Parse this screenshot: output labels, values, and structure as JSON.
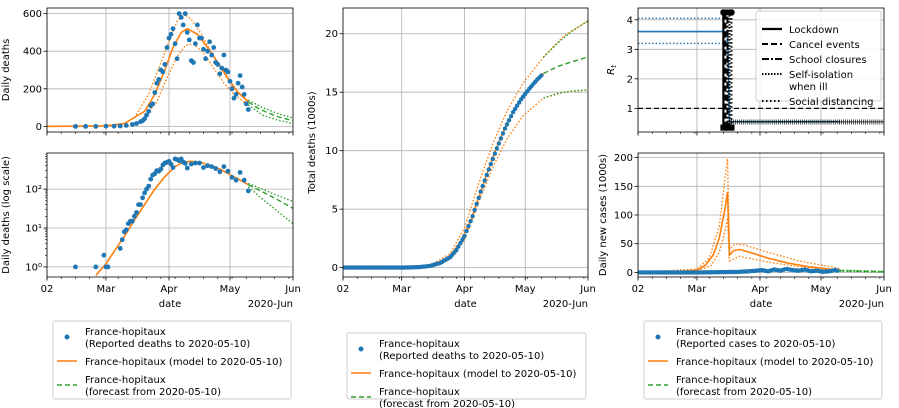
{
  "colors": {
    "reported": "#1f77b4",
    "model": "#ff7f0e",
    "forecast": "#2ca02c",
    "grid": "#b0b0b0"
  },
  "chart_data": [
    {
      "type": "scatter",
      "panel": "daily-deaths",
      "ylabel": "Daily deaths",
      "ylim": [
        -30,
        630
      ],
      "yticks": [
        0,
        200,
        400,
        600
      ],
      "xticks": [
        "02",
        "Mar",
        "Apr",
        "May",
        "Jun"
      ],
      "grid": true,
      "reported": {
        "x": [
          "2020-02-15",
          "2020-02-20",
          "2020-02-25",
          "2020-03-01",
          "2020-03-05",
          "2020-03-08",
          "2020-03-11",
          "2020-03-14",
          "2020-03-16",
          "2020-03-18",
          "2020-03-19",
          "2020-03-20",
          "2020-03-21",
          "2020-03-22",
          "2020-03-23",
          "2020-03-24",
          "2020-03-25",
          "2020-03-26",
          "2020-03-27",
          "2020-03-28",
          "2020-03-29",
          "2020-03-30",
          "2020-03-31",
          "2020-04-01",
          "2020-04-02",
          "2020-04-03",
          "2020-04-04",
          "2020-04-05",
          "2020-04-06",
          "2020-04-07",
          "2020-04-08",
          "2020-04-09",
          "2020-04-10",
          "2020-04-11",
          "2020-04-12",
          "2020-04-13",
          "2020-04-14",
          "2020-04-15",
          "2020-04-16",
          "2020-04-17",
          "2020-04-18",
          "2020-04-19",
          "2020-04-20",
          "2020-04-21",
          "2020-04-22",
          "2020-04-23",
          "2020-04-24",
          "2020-04-25",
          "2020-04-26",
          "2020-04-27",
          "2020-04-28",
          "2020-04-29",
          "2020-04-30",
          "2020-05-01",
          "2020-05-02",
          "2020-05-03",
          "2020-05-04",
          "2020-05-05",
          "2020-05-06",
          "2020-05-07",
          "2020-05-08",
          "2020-05-09",
          "2020-05-10"
        ],
        "y": [
          0,
          0,
          0,
          1,
          1,
          2,
          5,
          10,
          15,
          25,
          30,
          40,
          60,
          80,
          110,
          120,
          180,
          230,
          250,
          300,
          290,
          330,
          420,
          470,
          490,
          520,
          440,
          360,
          600,
          580,
          540,
          600,
          500,
          460,
          350,
          340,
          440,
          540,
          470,
          470,
          410,
          360,
          400,
          450,
          380,
          420,
          340,
          330,
          280,
          310,
          380,
          300,
          290,
          240,
          200,
          150,
          170,
          230,
          270,
          210,
          170,
          120,
          90
        ]
      },
      "model": {
        "x": [
          "2020-02-01",
          "2020-03-01",
          "2020-03-10",
          "2020-03-20",
          "2020-03-25",
          "2020-03-30",
          "2020-04-03",
          "2020-04-07",
          "2020-04-10",
          "2020-04-15",
          "2020-04-20",
          "2020-04-25",
          "2020-05-01",
          "2020-05-05",
          "2020-05-10"
        ],
        "y": [
          0,
          3,
          15,
          80,
          170,
          300,
          420,
          500,
          520,
          490,
          420,
          340,
          240,
          180,
          130
        ]
      },
      "model_band_upper": {
        "x": [
          "2020-03-15",
          "2020-03-22",
          "2020-03-27",
          "2020-04-01",
          "2020-04-05",
          "2020-04-08",
          "2020-04-12",
          "2020-04-17",
          "2020-04-22",
          "2020-04-27",
          "2020-05-03",
          "2020-05-10"
        ],
        "y": [
          45,
          170,
          310,
          450,
          560,
          600,
          570,
          490,
          390,
          300,
          200,
          135
        ]
      },
      "model_band_lower": {
        "x": [
          "2020-03-20",
          "2020-03-26",
          "2020-03-31",
          "2020-04-05",
          "2020-04-09",
          "2020-04-13",
          "2020-04-18",
          "2020-04-23",
          "2020-04-28",
          "2020-05-04",
          "2020-05-10"
        ],
        "y": [
          50,
          130,
          260,
          370,
          430,
          440,
          390,
          310,
          230,
          160,
          115
        ]
      },
      "forecast": {
        "x": [
          "2020-05-10",
          "2020-05-15",
          "2020-05-20",
          "2020-05-25",
          "2020-06-01"
        ],
        "y": [
          130,
          95,
          70,
          50,
          30
        ]
      },
      "forecast_upper": {
        "x": [
          "2020-05-10",
          "2020-05-17",
          "2020-05-24",
          "2020-06-01"
        ],
        "y": [
          140,
          100,
          70,
          45
        ]
      },
      "forecast_lower": {
        "x": [
          "2020-05-10",
          "2020-05-17",
          "2020-05-24",
          "2020-06-01"
        ],
        "y": [
          115,
          60,
          35,
          15
        ]
      }
    },
    {
      "type": "scatter",
      "panel": "daily-deaths-log",
      "ylabel": "Daily deaths (log scale)",
      "yscale": "log",
      "ylim": [
        0.55,
        850
      ],
      "yticks_label": [
        "10⁰",
        "10¹",
        "10²"
      ],
      "yticks": [
        1,
        10,
        100
      ],
      "xticks": [
        "02",
        "Mar",
        "Apr",
        "May",
        "Jun"
      ],
      "xlabel": "date",
      "xlabel2": "2020-Jun",
      "grid": true,
      "reported": {
        "x": [
          "2020-02-15",
          "2020-02-25",
          "2020-02-29",
          "2020-03-01",
          "2020-03-02",
          "2020-03-08",
          "2020-03-09",
          "2020-03-10",
          "2020-03-11",
          "2020-03-12",
          "2020-03-13",
          "2020-03-14",
          "2020-03-15",
          "2020-03-16",
          "2020-03-17",
          "2020-03-18",
          "2020-03-19",
          "2020-03-20",
          "2020-03-21",
          "2020-03-22",
          "2020-03-23",
          "2020-03-24",
          "2020-03-25",
          "2020-03-26",
          "2020-03-27",
          "2020-03-28",
          "2020-03-29",
          "2020-03-30",
          "2020-03-31",
          "2020-04-01",
          "2020-04-02",
          "2020-04-03",
          "2020-04-04",
          "2020-04-05",
          "2020-04-06",
          "2020-04-07",
          "2020-04-08",
          "2020-04-09",
          "2020-04-10",
          "2020-04-12",
          "2020-04-14",
          "2020-04-16",
          "2020-04-18",
          "2020-04-20",
          "2020-04-22",
          "2020-04-24",
          "2020-04-26",
          "2020-04-28",
          "2020-04-30",
          "2020-05-02",
          "2020-05-04",
          "2020-05-06",
          "2020-05-08",
          "2020-05-10"
        ],
        "y": [
          1,
          1,
          2,
          1,
          1,
          3,
          5,
          8,
          9,
          13,
          15,
          15,
          20,
          25,
          40,
          40,
          60,
          80,
          100,
          120,
          180,
          230,
          250,
          300,
          290,
          330,
          420,
          470,
          490,
          520,
          440,
          360,
          600,
          580,
          540,
          600,
          500,
          460,
          350,
          440,
          470,
          470,
          360,
          400,
          380,
          340,
          280,
          380,
          290,
          200,
          170,
          270,
          170,
          90
        ]
      },
      "model": {
        "x": [
          "2020-02-25",
          "2020-03-01",
          "2020-03-05",
          "2020-03-10",
          "2020-03-15",
          "2020-03-20",
          "2020-03-25",
          "2020-03-30",
          "2020-04-04",
          "2020-04-08",
          "2020-04-12",
          "2020-04-17",
          "2020-04-22",
          "2020-04-27",
          "2020-05-02",
          "2020-05-07",
          "2020-05-10"
        ],
        "y": [
          0.6,
          1.2,
          2.5,
          6,
          16,
          40,
          100,
          210,
          380,
          490,
          520,
          480,
          400,
          310,
          220,
          160,
          130
        ]
      },
      "forecast": {
        "x": [
          "2020-05-10",
          "2020-05-17",
          "2020-05-24",
          "2020-06-01"
        ],
        "y": [
          130,
          85,
          55,
          32
        ]
      },
      "forecast_upper": {
        "x": [
          "2020-05-10",
          "2020-05-17",
          "2020-05-24",
          "2020-06-01"
        ],
        "y": [
          140,
          100,
          70,
          48
        ]
      },
      "forecast_lower": {
        "x": [
          "2020-05-10",
          "2020-05-17",
          "2020-05-24",
          "2020-06-01"
        ],
        "y": [
          115,
          55,
          28,
          13
        ]
      }
    },
    {
      "type": "line",
      "panel": "total-deaths",
      "ylabel": "Total deaths (1000s)",
      "ylim": [
        -0.8,
        22.2
      ],
      "yticks": [
        0,
        5,
        10,
        15,
        20
      ],
      "xticks": [
        "02",
        "Mar",
        "Apr",
        "May",
        "Jun"
      ],
      "xlabel": "date",
      "xlabel2": "2020-Jun",
      "grid": true,
      "reported": {
        "x": [
          "2020-02-01",
          "2020-03-01",
          "2020-03-10",
          "2020-03-15",
          "2020-03-20",
          "2020-03-25",
          "2020-03-28",
          "2020-04-01",
          "2020-04-05",
          "2020-04-09",
          "2020-04-13",
          "2020-04-17",
          "2020-04-21",
          "2020-04-25",
          "2020-04-29",
          "2020-05-03",
          "2020-05-07",
          "2020-05-10"
        ],
        "y": [
          0,
          0,
          0.05,
          0.15,
          0.4,
          0.9,
          1.5,
          2.7,
          4.4,
          6.5,
          8.4,
          10.2,
          11.9,
          13.3,
          14.4,
          15.3,
          16.1,
          16.6
        ]
      },
      "model": {
        "x": [
          "2020-02-01",
          "2020-03-01",
          "2020-03-10",
          "2020-03-15",
          "2020-03-20",
          "2020-03-25",
          "2020-03-30",
          "2020-04-04",
          "2020-04-08",
          "2020-04-12",
          "2020-04-16",
          "2020-04-20",
          "2020-04-24",
          "2020-04-28",
          "2020-05-03",
          "2020-05-10"
        ],
        "y": [
          0,
          0,
          0.05,
          0.15,
          0.4,
          1.0,
          2.2,
          4.0,
          6.0,
          8.0,
          9.9,
          11.6,
          13.0,
          14.2,
          15.4,
          16.6
        ]
      },
      "model_band_upper": {
        "x": [
          "2020-03-15",
          "2020-03-25",
          "2020-04-01",
          "2020-04-08",
          "2020-04-15",
          "2020-04-22",
          "2020-04-30",
          "2020-05-10",
          "2020-05-20",
          "2020-06-01"
        ],
        "y": [
          0.2,
          1.2,
          3.4,
          7.2,
          10.6,
          13.4,
          15.8,
          18.0,
          19.8,
          21.1
        ]
      },
      "model_band_lower": {
        "x": [
          "2020-03-15",
          "2020-03-25",
          "2020-04-01",
          "2020-04-08",
          "2020-04-15",
          "2020-04-22",
          "2020-04-30",
          "2020-05-10",
          "2020-05-20",
          "2020-06-01"
        ],
        "y": [
          0.1,
          0.8,
          2.4,
          5.6,
          8.6,
          11.0,
          13.0,
          14.5,
          15.0,
          15.2
        ]
      },
      "forecast": {
        "x": [
          "2020-05-10",
          "2020-05-17",
          "2020-05-24",
          "2020-06-01"
        ],
        "y": [
          16.6,
          17.2,
          17.6,
          18.0
        ]
      },
      "forecast_upper": {
        "x": [
          "2020-05-10",
          "2020-05-17",
          "2020-05-24",
          "2020-06-01"
        ],
        "y": [
          18.0,
          19.2,
          20.2,
          21.1
        ]
      },
      "forecast_lower": {
        "x": [
          "2020-05-10",
          "2020-05-17",
          "2020-05-24",
          "2020-06-01"
        ],
        "y": [
          14.5,
          14.9,
          15.1,
          15.2
        ]
      }
    },
    {
      "type": "line",
      "panel": "rt",
      "ylabel": "R",
      "ylabel_sub": "t",
      "ylim": [
        0.2,
        4.4
      ],
      "yticks": [
        1,
        2,
        3,
        4
      ],
      "xticks": [
        "02",
        "Mar",
        "Apr",
        "May",
        "Jun"
      ],
      "grid": true,
      "rt_model": {
        "x": [
          "2020-02-01",
          "2020-03-16",
          "2020-03-17",
          "2020-05-10"
        ],
        "y": [
          3.6,
          3.6,
          0.55,
          0.55
        ]
      },
      "rt_upper": {
        "x": [
          "2020-02-01",
          "2020-03-16"
        ],
        "y": [
          4.05,
          4.05
        ]
      },
      "rt_lower": {
        "x": [
          "2020-02-01",
          "2020-03-16"
        ],
        "y": [
          3.2,
          3.2
        ]
      },
      "rt_forecast": {
        "x": [
          "2020-05-10",
          "2020-06-01"
        ],
        "y": [
          0.55,
          0.55
        ]
      },
      "threshold": 1,
      "intervention_dates": [
        "2020-03-14",
        "2020-03-15",
        "2020-03-16",
        "2020-03-17",
        "2020-03-18"
      ],
      "legend": [
        "Lockdown",
        "Cancel events",
        "School closures",
        "Self-isolation\nwhen ill",
        "Social distancing"
      ],
      "legend_position": "top-right"
    },
    {
      "type": "line",
      "panel": "daily-new-cases",
      "ylabel": "Daily new cases (1000s)",
      "ylim": [
        -8,
        208
      ],
      "yticks": [
        0,
        50,
        100,
        150,
        200
      ],
      "xticks": [
        "02",
        "Mar",
        "Apr",
        "May",
        "Jun"
      ],
      "xlabel": "date",
      "xlabel2": "2020-Jun",
      "grid": true,
      "reported": {
        "x": [
          "2020-02-01",
          "2020-03-01",
          "2020-03-10",
          "2020-03-20",
          "2020-03-25",
          "2020-03-30",
          "2020-04-02",
          "2020-04-05",
          "2020-04-08",
          "2020-04-11",
          "2020-04-14",
          "2020-04-17",
          "2020-04-20",
          "2020-04-23",
          "2020-04-26",
          "2020-04-29",
          "2020-05-02",
          "2020-05-05",
          "2020-05-08",
          "2020-05-10"
        ],
        "y": [
          0,
          0,
          0.3,
          0.8,
          1.5,
          3,
          4,
          2,
          5,
          3,
          6,
          4,
          3,
          5,
          2,
          3,
          1,
          2,
          4,
          2
        ]
      },
      "model": {
        "x": [
          "2020-02-01",
          "2020-02-20",
          "2020-03-01",
          "2020-03-05",
          "2020-03-09",
          "2020-03-12",
          "2020-03-15",
          "2020-03-16",
          "2020-03-17",
          "2020-03-19",
          "2020-03-22",
          "2020-03-27",
          "2020-04-05",
          "2020-04-15",
          "2020-04-25",
          "2020-05-05",
          "2020-05-10"
        ],
        "y": [
          0,
          1,
          4,
          12,
          30,
          60,
          115,
          140,
          30,
          38,
          40,
          35,
          25,
          16,
          10,
          6,
          4
        ]
      },
      "model_band_upper": {
        "x": [
          "2020-02-01",
          "2020-03-01",
          "2020-03-07",
          "2020-03-12",
          "2020-03-15",
          "2020-03-16",
          "2020-03-17",
          "2020-03-20",
          "2020-03-25",
          "2020-04-05",
          "2020-04-20",
          "2020-05-10"
        ],
        "y": [
          0,
          6,
          25,
          80,
          170,
          198,
          40,
          50,
          47,
          35,
          20,
          7
        ]
      },
      "model_band_lower": {
        "x": [
          "2020-02-01",
          "2020-03-01",
          "2020-03-08",
          "2020-03-12",
          "2020-03-15",
          "2020-03-16",
          "2020-03-17",
          "2020-03-22",
          "2020-04-05",
          "2020-04-20",
          "2020-05-10"
        ],
        "y": [
          0,
          2,
          12,
          35,
          75,
          95,
          20,
          28,
          18,
          10,
          3
        ]
      },
      "forecast": {
        "x": [
          "2020-05-10",
          "2020-06-01"
        ],
        "y": [
          3,
          1
        ]
      },
      "forecast_upper": {
        "x": [
          "2020-05-10",
          "2020-06-01"
        ],
        "y": [
          4,
          2
        ]
      },
      "forecast_lower": {
        "x": [
          "2020-05-10",
          "2020-06-01"
        ],
        "y": [
          2,
          0.5
        ]
      }
    }
  ],
  "legends": {
    "deaths_left": {
      "reported": "France-hopitaux\n(Reported deaths to  2020-05-10)",
      "model": "France-hopitaux (model to  2020-05-10)",
      "forecast": "France-hopitaux\n(forecast from  2020-05-10)"
    },
    "deaths_middle": {
      "reported": "France-hopitaux\n(Reported deaths to  2020-05-10)",
      "model": "France-hopitaux (model to  2020-05-10)",
      "forecast": "France-hopitaux\n(forecast from  2020-05-10)"
    },
    "cases_right": {
      "reported": "France-hopitaux\n(Reported cases to  2020-05-10)",
      "model": "France-hopitaux (model to  2020-05-10)",
      "forecast": "France-hopitaux\n(forecast from  2020-05-10)"
    }
  }
}
